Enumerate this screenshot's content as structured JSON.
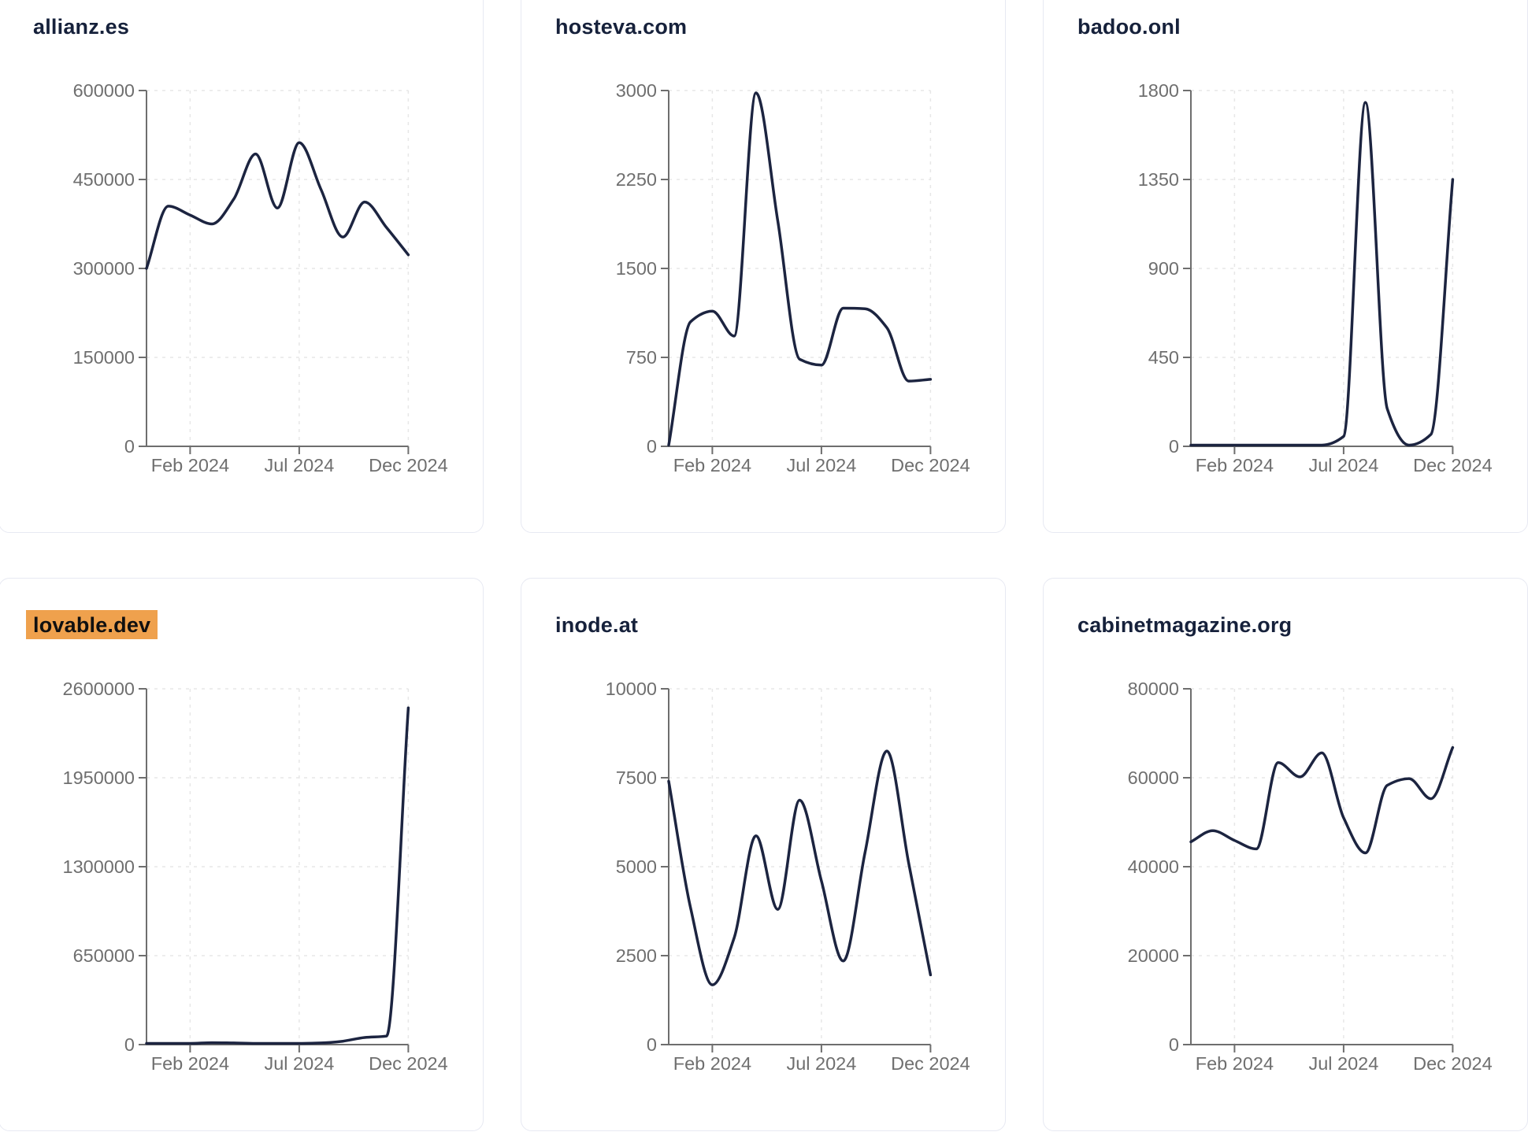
{
  "page": {
    "description_visible_text_only": "grid of six website traffic trend cards"
  },
  "colors": {
    "line": "#1c2440",
    "title_text": "#16213b",
    "highlight_bg": "#efa14d",
    "highlight_text": "#101010",
    "tick_label": "#6f6f6f",
    "axis": "#6e6e6e",
    "grid": "#e7e7e7",
    "card_border": "#e7e9f2",
    "card_bg": "#ffffff"
  },
  "chart_data": [
    {
      "type": "line",
      "title": "allianz.es",
      "highlighted": false,
      "x": [
        "Dec 2023",
        "Jan 2024",
        "Feb 2024",
        "Mar 2024",
        "Apr 2024",
        "May 2024",
        "Jun 2024",
        "Jul 2024",
        "Aug 2024",
        "Sep 2024",
        "Oct 2024",
        "Nov 2024",
        "Dec 2024"
      ],
      "values": [
        300000,
        405000,
        390000,
        375000,
        417000,
        493000,
        402000,
        512000,
        433000,
        353000,
        412000,
        369000,
        323000
      ],
      "ylim": [
        0,
        600000
      ],
      "yticks": [
        0,
        150000,
        300000,
        450000,
        600000
      ],
      "ytick_labels": [
        "0",
        "150000",
        "300000",
        "450000",
        "600000"
      ],
      "xticks": [
        {
          "label": "Feb 2024",
          "index": 2
        },
        {
          "label": "Jul 2024",
          "index": 7
        },
        {
          "label": "Dec 2024",
          "index": 12
        }
      ],
      "grid": true,
      "legend": false
    },
    {
      "type": "line",
      "title": "hosteva.com",
      "highlighted": false,
      "x": [
        "Dec 2023",
        "Jan 2024",
        "Feb 2024",
        "Mar 2024",
        "Apr 2024",
        "May 2024",
        "Jun 2024",
        "Jul 2024",
        "Aug 2024",
        "Sep 2024",
        "Oct 2024",
        "Nov 2024",
        "Dec 2024"
      ],
      "values": [
        0,
        1050,
        1140,
        930,
        2980,
        1900,
        735,
        685,
        1165,
        1160,
        1000,
        550,
        565
      ],
      "ylim": [
        0,
        3000
      ],
      "yticks": [
        0,
        750,
        1500,
        2250,
        3000
      ],
      "ytick_labels": [
        "0",
        "750",
        "1500",
        "2250",
        "3000"
      ],
      "xticks": [
        {
          "label": "Feb 2024",
          "index": 2
        },
        {
          "label": "Jul 2024",
          "index": 7
        },
        {
          "label": "Dec 2024",
          "index": 12
        }
      ],
      "grid": true,
      "legend": false
    },
    {
      "type": "line",
      "title": "badoo.onl",
      "highlighted": false,
      "x": [
        "Dec 2023",
        "Jan 2024",
        "Feb 2024",
        "Mar 2024",
        "Apr 2024",
        "May 2024",
        "Jun 2024",
        "Jul 2024",
        "Aug 2024",
        "Sep 2024",
        "Oct 2024",
        "Nov 2024",
        "Dec 2024"
      ],
      "values": [
        4,
        4,
        4,
        4,
        4,
        4,
        6,
        50,
        1740,
        190,
        4,
        60,
        1350
      ],
      "ylim": [
        0,
        1800
      ],
      "yticks": [
        0,
        450,
        900,
        1350,
        1800
      ],
      "ytick_labels": [
        "0",
        "450",
        "900",
        "1350",
        "1800"
      ],
      "xticks": [
        {
          "label": "Feb 2024",
          "index": 2
        },
        {
          "label": "Jul 2024",
          "index": 7
        },
        {
          "label": "Dec 2024",
          "index": 12
        }
      ],
      "grid": true,
      "legend": false
    },
    {
      "type": "line",
      "title": "lovable.dev",
      "highlighted": true,
      "x": [
        "Dec 2023",
        "Jan 2024",
        "Feb 2024",
        "Mar 2024",
        "Apr 2024",
        "May 2024",
        "Jun 2024",
        "Jul 2024",
        "Aug 2024",
        "Sep 2024",
        "Oct 2024",
        "Nov 2024",
        "Dec 2024"
      ],
      "values": [
        1500,
        2500,
        6000,
        14000,
        12000,
        7000,
        4000,
        5000,
        12000,
        25000,
        52000,
        62000,
        2460000
      ],
      "ylim": [
        0,
        2600000
      ],
      "yticks": [
        0,
        650000,
        1300000,
        1950000,
        2600000
      ],
      "ytick_labels": [
        "0",
        "650000",
        "1300000",
        "1950000",
        "2600000"
      ],
      "xticks": [
        {
          "label": "Feb 2024",
          "index": 2
        },
        {
          "label": "Jul 2024",
          "index": 7
        },
        {
          "label": "Dec 2024",
          "index": 12
        }
      ],
      "grid": true,
      "legend": false
    },
    {
      "type": "line",
      "title": "inode.at",
      "highlighted": false,
      "x": [
        "Dec 2023",
        "Jan 2024",
        "Feb 2024",
        "Mar 2024",
        "Apr 2024",
        "May 2024",
        "Jun 2024",
        "Jul 2024",
        "Aug 2024",
        "Sep 2024",
        "Oct 2024",
        "Nov 2024",
        "Dec 2024"
      ],
      "values": [
        7400,
        3850,
        1680,
        3000,
        5870,
        3800,
        6870,
        4600,
        2350,
        5400,
        8250,
        5100,
        1960
      ],
      "ylim": [
        0,
        10000
      ],
      "yticks": [
        0,
        2500,
        5000,
        7500,
        10000
      ],
      "ytick_labels": [
        "0",
        "2500",
        "5000",
        "7500",
        "10000"
      ],
      "xticks": [
        {
          "label": "Feb 2024",
          "index": 2
        },
        {
          "label": "Jul 2024",
          "index": 7
        },
        {
          "label": "Dec 2024",
          "index": 12
        }
      ],
      "grid": true,
      "legend": false
    },
    {
      "type": "line",
      "title": "cabinetmagazine.org",
      "highlighted": false,
      "x": [
        "Dec 2023",
        "Jan 2024",
        "Feb 2024",
        "Mar 2024",
        "Apr 2024",
        "May 2024",
        "Jun 2024",
        "Jul 2024",
        "Aug 2024",
        "Sep 2024",
        "Oct 2024",
        "Nov 2024",
        "Dec 2024"
      ],
      "values": [
        45600,
        48100,
        45900,
        44000,
        63400,
        60200,
        65600,
        51000,
        43100,
        58300,
        59800,
        55300,
        66800
      ],
      "ylim": [
        0,
        80000
      ],
      "yticks": [
        0,
        20000,
        40000,
        60000,
        80000
      ],
      "ytick_labels": [
        "0",
        "20000",
        "40000",
        "60000",
        "80000"
      ],
      "xticks": [
        {
          "label": "Feb 2024",
          "index": 2
        },
        {
          "label": "Jul 2024",
          "index": 7
        },
        {
          "label": "Dec 2024",
          "index": 12
        }
      ],
      "grid": true,
      "legend": false
    }
  ]
}
